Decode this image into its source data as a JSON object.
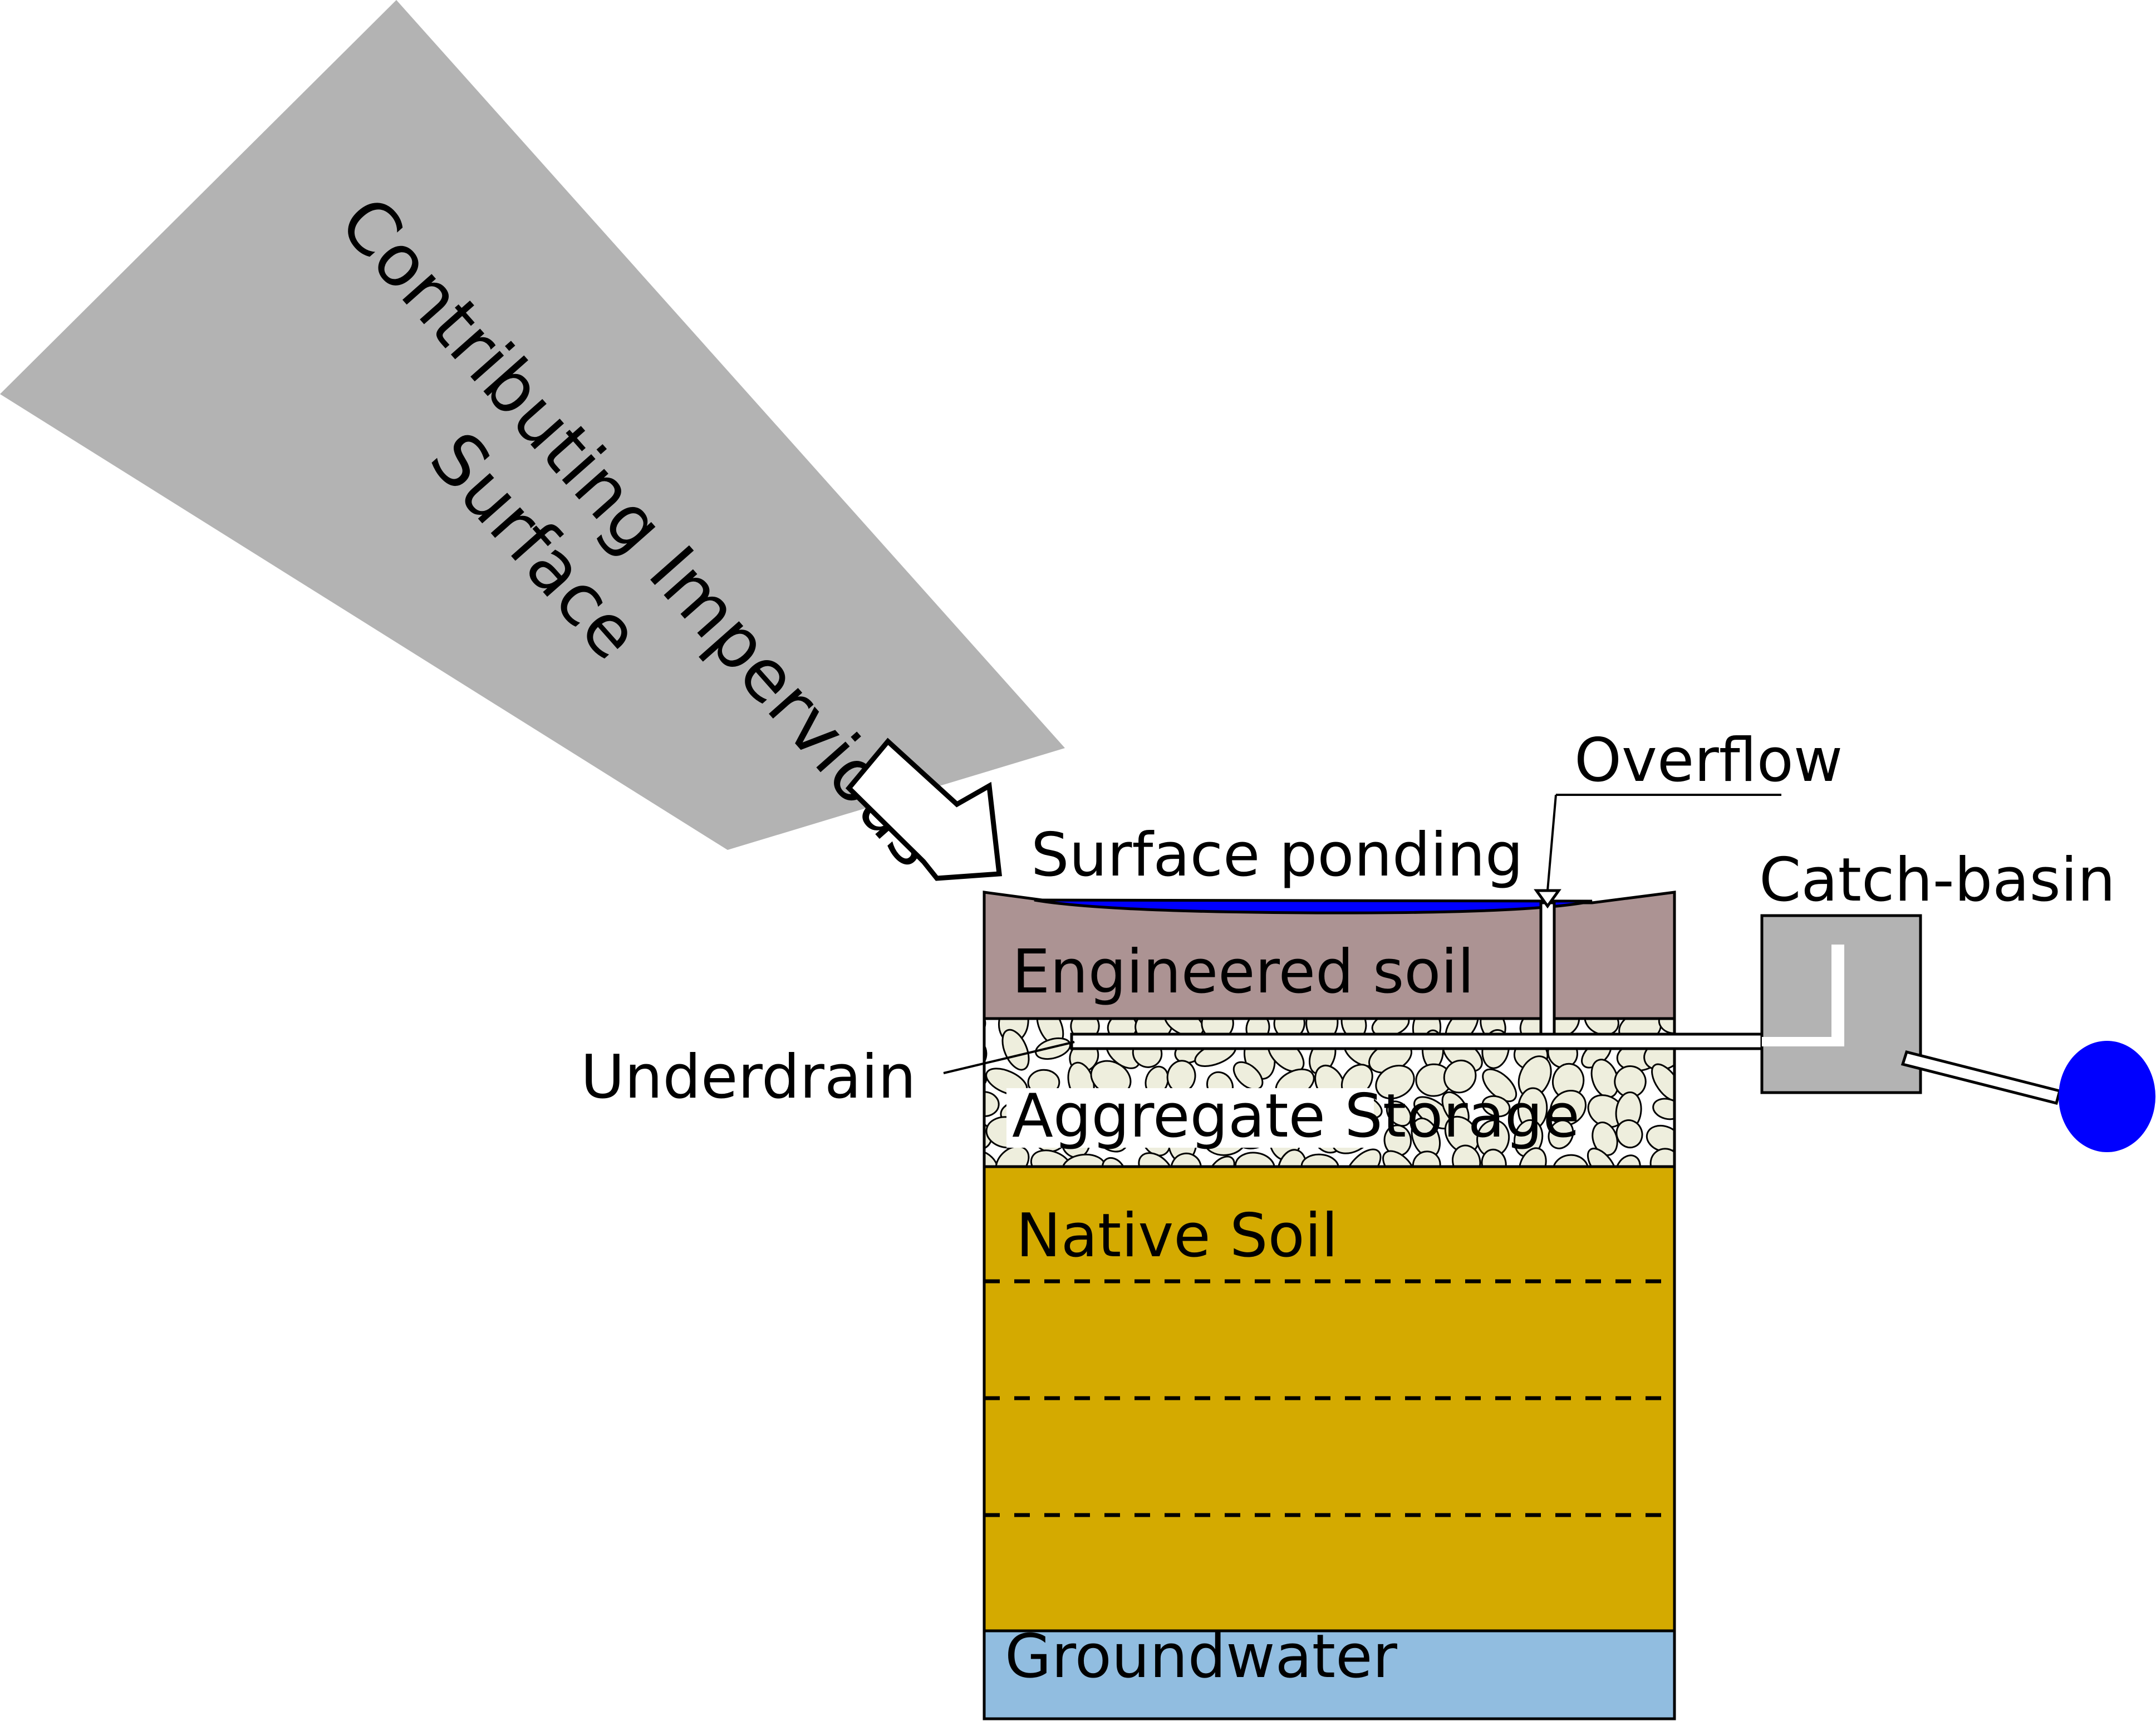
{
  "labels": {
    "impervious_line1": "Contributing Impervious",
    "impervious_line2": "Surface",
    "surface_ponding": "Surface ponding",
    "overflow": "Overflow",
    "catch_basin": "Catch-basin",
    "engineered_soil": "Engineered soil",
    "underdrain": "Underdrain",
    "aggregate_storage": "Aggregate Storage",
    "native_soil": "Native Soil",
    "groundwater": "Groundwater"
  },
  "colors": {
    "impervious_surface": "#b3b3b3",
    "ponding_water": "#0000ff",
    "engineered_soil": "#ac9393",
    "aggregate_background": "#ffffff",
    "aggregate_stones": "#eeeedd",
    "native_soil": "#d4aa00",
    "groundwater": "#91bde0",
    "catch_basin": "#b3b3b3",
    "outlet": "#0000ff",
    "outline": "#000000"
  }
}
